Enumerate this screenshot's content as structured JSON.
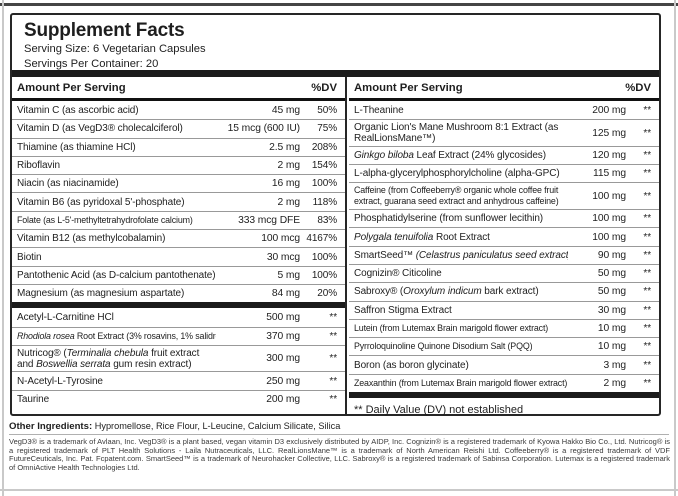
{
  "colors": {
    "ink": "#1e1e1e",
    "border": "#262626",
    "bar": "#1b1b1b",
    "separator": "#999999",
    "frame": "#c9c9c9",
    "topline": "#454545",
    "footnote": "#3a3a3a"
  },
  "label": {
    "title": "Supplement Facts",
    "serving_size": "Serving Size: 6 Vegetarian Capsules",
    "servings_per_container": "Servings Per Container: 20",
    "column_header": {
      "amount": "Amount Per Serving",
      "dv": "%DV"
    },
    "left_column": {
      "sections": [
        {
          "rows": [
            {
              "name": [
                [
                  "Vitamin C (as ascorbic acid)",
                  false
                ]
              ],
              "amount": "45 mg",
              "dv": "50%"
            },
            {
              "name": [
                [
                  "Vitamin D (as VegD3® cholecalciferol)",
                  false
                ]
              ],
              "amount": "15 mcg (600 IU)",
              "dv": "75%"
            },
            {
              "name": [
                [
                  "Thiamine (as thiamine HCl)",
                  false
                ]
              ],
              "amount": "2.5 mg",
              "dv": "208%"
            },
            {
              "name": [
                [
                  "Riboflavin",
                  false
                ]
              ],
              "amount": "2 mg",
              "dv": "154%"
            },
            {
              "name": [
                [
                  "Niacin (as niacinamide)",
                  false
                ]
              ],
              "amount": "16 mg",
              "dv": "100%"
            },
            {
              "name": [
                [
                  "Vitamin B6 (as pyridoxal 5'-phosphate)",
                  false
                ]
              ],
              "amount": "2 mg",
              "dv": "118%"
            },
            {
              "name": [
                [
                  "Folate (as L-5'-methyltetrahydrofolate calcium)",
                  false
                ]
              ],
              "amount": "333 mcg DFE",
              "dv": "83%",
              "small": true
            },
            {
              "name": [
                [
                  "Vitamin B12 (as methylcobalamin)",
                  false
                ]
              ],
              "amount": "100 mcg",
              "dv": "4167%"
            },
            {
              "name": [
                [
                  "Biotin",
                  false
                ]
              ],
              "amount": "30 mcg",
              "dv": "100%"
            },
            {
              "name": [
                [
                  "Pantothenic Acid (as D-calcium pantothenate)",
                  false
                ]
              ],
              "amount": "5 mg",
              "dv": "100%"
            },
            {
              "name": [
                [
                  "Magnesium (as magnesium aspartate)",
                  false
                ]
              ],
              "amount": "84 mg",
              "dv": "20%"
            }
          ]
        },
        {
          "rows": [
            {
              "name": [
                [
                  "Acetyl-L-Carnitine HCl",
                  false
                ]
              ],
              "amount": "500 mg",
              "dv": "**"
            },
            {
              "name": [
                [
                  "Rhodiola rosea",
                  true
                ],
                [
                  " Root Extract (3% rosavins, 1% salidrosides)",
                  false
                ]
              ],
              "amount": "370 mg",
              "dv": "**",
              "small": true
            },
            {
              "name": [
                [
                  "Nutricog® (",
                  false
                ],
                [
                  "Terminalia chebula",
                  true
                ],
                [
                  " fruit extract and ",
                  false
                ],
                [
                  "Boswellia serrata",
                  true
                ],
                [
                  " gum resin extract)",
                  false
                ]
              ],
              "amount": "300 mg",
              "dv": "**",
              "tall": true
            },
            {
              "name": [
                [
                  "N-Acetyl-L-Tyrosine",
                  false
                ]
              ],
              "amount": "250 mg",
              "dv": "**"
            },
            {
              "name": [
                [
                  "Taurine",
                  false
                ]
              ],
              "amount": "200 mg",
              "dv": "**"
            }
          ]
        }
      ]
    },
    "right_column": {
      "rows": [
        {
          "name": [
            [
              "L-Theanine",
              false
            ]
          ],
          "amount": "200 mg",
          "dv": "**"
        },
        {
          "name": [
            [
              "Organic Lion's Mane Mushroom 8:1 Extract (as RealLionsMane™)",
              false
            ]
          ],
          "amount": "125 mg",
          "dv": "**",
          "tall": true
        },
        {
          "name": [
            [
              "Ginkgo biloba",
              true
            ],
            [
              " Leaf Extract (24% glycosides)",
              false
            ]
          ],
          "amount": "120 mg",
          "dv": "**"
        },
        {
          "name": [
            [
              "L-alpha-glycerylphosphorylcholine (alpha-GPC)",
              false
            ]
          ],
          "amount": "115 mg",
          "dv": "**"
        },
        {
          "name": [
            [
              "Caffeine (from Coffeeberry® organic whole coffee fruit extract, guarana seed extract and anhydrous caffeine)",
              false
            ]
          ],
          "amount": "100 mg",
          "dv": "**",
          "tall": true,
          "small": true
        },
        {
          "name": [
            [
              "Phosphatidylserine (from sunflower lecithin)",
              false
            ]
          ],
          "amount": "100 mg",
          "dv": "**"
        },
        {
          "name": [
            [
              "Polygala tenuifolia",
              true
            ],
            [
              " Root Extract",
              false
            ]
          ],
          "amount": "100 mg",
          "dv": "**"
        },
        {
          "name": [
            [
              "SmartSeed™ ",
              false
            ],
            [
              "(Celastrus paniculatus",
              true
            ],
            [
              " seed extract)",
              true
            ]
          ],
          "amount": "90 mg",
          "dv": "**"
        },
        {
          "name": [
            [
              "Cognizin® Citicoline",
              false
            ]
          ],
          "amount": "50 mg",
          "dv": "**"
        },
        {
          "name": [
            [
              "Sabroxy® (",
              false
            ],
            [
              "Oroxylum indicum",
              true
            ],
            [
              " bark extract)",
              false
            ]
          ],
          "amount": "50 mg",
          "dv": "**"
        },
        {
          "name": [
            [
              "Saffron Stigma Extract",
              false
            ]
          ],
          "amount": "30 mg",
          "dv": "**"
        },
        {
          "name": [
            [
              "Lutein (from Lutemax Brain marigold flower extract)",
              false
            ]
          ],
          "amount": "10 mg",
          "dv": "**",
          "small": true
        },
        {
          "name": [
            [
              "Pyrroloquinoline Quinone Disodium Salt (PQQ)",
              false
            ]
          ],
          "amount": "10 mg",
          "dv": "**",
          "small": true
        },
        {
          "name": [
            [
              "Boron (as boron glycinate)",
              false
            ]
          ],
          "amount": "3 mg",
          "dv": "**"
        },
        {
          "name": [
            [
              "Zeaxanthin (from Lutemax Brain marigold flower extract)",
              false
            ]
          ],
          "amount": "2 mg",
          "dv": "**",
          "small": true
        }
      ],
      "note": "** Daily Value (DV) not established"
    },
    "other_ingredients": {
      "label": "Other Ingredients:",
      "text": "Hypromellose, Rice Flour, L-Leucine, Calcium Silicate, Silica"
    },
    "trademark_note": "VegD3® is a trademark of Avlaan, Inc. VegD3® is a plant based, vegan vitamin D3 exclusively distributed by AIDP, Inc. Cognizin® is a registered trademark of Kyowa Hakko Bio Co., Ltd. Nutricog® is a registered trademark of PLT Health Solutions - Laila Nutraceuticals, LLC. RealLionsMane™ is a trademark of North American Reishi Ltd. Coffeeberry® is a registered trademark of VDF FutureCeuticals, Inc. Pat. Fcpatent.com. SmartSeed™ is a trademark of Neurohacker Collective, LLC. Sabroxy® is a registered trademark of Sabinsa Corporation. Lutemax is a registered trademark of OmniActive Health Technologies Ltd."
  }
}
